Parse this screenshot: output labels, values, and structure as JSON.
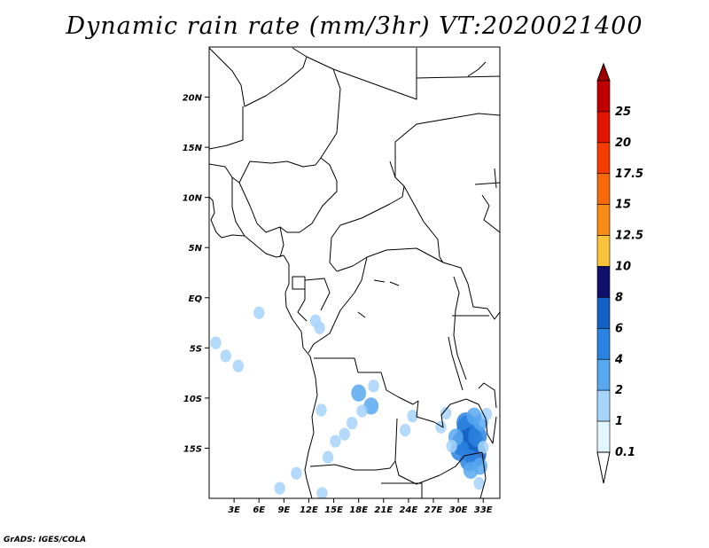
{
  "title": "Dynamic rain rate (mm/3hr) VT:2020021400",
  "credit": "GrADS: IGES/COLA",
  "map": {
    "lon_range": [
      0,
      35
    ],
    "lat_range": [
      -20,
      25
    ],
    "lat_ticks": [
      {
        "label": "20N",
        "value": 20
      },
      {
        "label": "15N",
        "value": 15
      },
      {
        "label": "10N",
        "value": 10
      },
      {
        "label": "5N",
        "value": 5
      },
      {
        "label": "EQ",
        "value": 0
      },
      {
        "label": "5S",
        "value": -5
      },
      {
        "label": "10S",
        "value": -10
      },
      {
        "label": "15S",
        "value": -15
      }
    ],
    "lon_ticks": [
      {
        "label": "3E",
        "value": 3
      },
      {
        "label": "6E",
        "value": 6
      },
      {
        "label": "9E",
        "value": 9
      },
      {
        "label": "12E",
        "value": 12
      },
      {
        "label": "15E",
        "value": 15
      },
      {
        "label": "18E",
        "value": 18
      },
      {
        "label": "21E",
        "value": 21
      },
      {
        "label": "24E",
        "value": 24
      },
      {
        "label": "27E",
        "value": 27
      },
      {
        "label": "30E",
        "value": 30
      },
      {
        "label": "33E",
        "value": 33
      }
    ],
    "rain_areas": [
      {
        "lon": 31.2,
        "lat": -13.0,
        "bin": 4
      },
      {
        "lon": 30.9,
        "lat": -12.5,
        "bin": 3
      },
      {
        "lon": 31.6,
        "lat": -14.2,
        "bin": 4
      },
      {
        "lon": 30.6,
        "lat": -14.5,
        "bin": 4
      },
      {
        "lon": 32.0,
        "lat": -15.6,
        "bin": 4
      },
      {
        "lon": 31.3,
        "lat": -16.2,
        "bin": 3
      },
      {
        "lon": 32.3,
        "lat": -13.8,
        "bin": 3
      },
      {
        "lon": 31.9,
        "lat": -11.8,
        "bin": 2
      },
      {
        "lon": 30.2,
        "lat": -15.2,
        "bin": 3
      },
      {
        "lon": 29.7,
        "lat": -13.9,
        "bin": 2
      },
      {
        "lon": 32.6,
        "lat": -16.8,
        "bin": 2
      },
      {
        "lon": 32.7,
        "lat": -12.4,
        "bin": 2
      },
      {
        "lon": 31.5,
        "lat": -17.2,
        "bin": 2
      },
      {
        "lon": 29.2,
        "lat": -14.8,
        "bin": 1
      },
      {
        "lon": 33.0,
        "lat": -14.9,
        "bin": 1
      },
      {
        "lon": 32.5,
        "lat": -18.5,
        "bin": 1
      },
      {
        "lon": 18.0,
        "lat": -9.5,
        "bin": 2
      },
      {
        "lon": 19.5,
        "lat": -10.8,
        "bin": 2
      },
      {
        "lon": 18.4,
        "lat": -11.3,
        "bin": 1
      },
      {
        "lon": 17.2,
        "lat": -12.5,
        "bin": 1
      },
      {
        "lon": 16.3,
        "lat": -13.6,
        "bin": 1
      },
      {
        "lon": 15.2,
        "lat": -14.3,
        "bin": 1
      },
      {
        "lon": 13.5,
        "lat": -11.2,
        "bin": 1
      },
      {
        "lon": 14.3,
        "lat": -15.9,
        "bin": 1
      },
      {
        "lon": 13.6,
        "lat": -19.5,
        "bin": 1
      },
      {
        "lon": 10.5,
        "lat": -17.5,
        "bin": 1
      },
      {
        "lon": 8.5,
        "lat": -19.0,
        "bin": 1
      },
      {
        "lon": 12.8,
        "lat": -2.3,
        "bin": 1
      },
      {
        "lon": 13.3,
        "lat": -3.0,
        "bin": 1
      },
      {
        "lon": 6.0,
        "lat": -1.5,
        "bin": 1
      },
      {
        "lon": 0.8,
        "lat": -4.5,
        "bin": 1
      },
      {
        "lon": 2.0,
        "lat": -5.8,
        "bin": 1
      },
      {
        "lon": 3.5,
        "lat": -6.8,
        "bin": 1
      },
      {
        "lon": 19.8,
        "lat": -8.8,
        "bin": 1
      },
      {
        "lon": 24.5,
        "lat": -11.8,
        "bin": 1
      },
      {
        "lon": 23.6,
        "lat": -13.2,
        "bin": 1
      },
      {
        "lon": 27.9,
        "lat": -12.9,
        "bin": 1
      },
      {
        "lon": 28.5,
        "lat": -11.5,
        "bin": 1
      },
      {
        "lon": 33.4,
        "lat": -11.6,
        "bin": 1
      }
    ]
  },
  "colorbar": {
    "levels": [
      "25",
      "20",
      "17.5",
      "15",
      "12.5",
      "10",
      "8",
      "6",
      "4",
      "2",
      "1",
      "0.1"
    ],
    "colors": [
      "#c00000",
      "#e01400",
      "#f53c00",
      "#f8690c",
      "#f88a16",
      "#fbc23c",
      "#10106b",
      "#1560c3",
      "#2a83e0",
      "#58a8f0",
      "#a6d4fa",
      "#e2f6ff"
    ],
    "top_color": "#a00000"
  }
}
